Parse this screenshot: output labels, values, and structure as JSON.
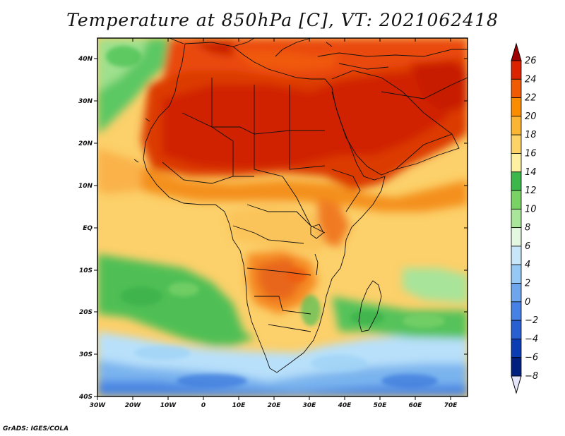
{
  "title": "Temperature at 850hPa [C], VT: 2021062418",
  "credit": "GrADS: IGES/COLA",
  "map": {
    "lon_labels": [
      "30W",
      "20W",
      "10W",
      "0",
      "10E",
      "20E",
      "30E",
      "40E",
      "50E",
      "60E",
      "70E"
    ],
    "lat_labels": [
      "40N",
      "30N",
      "20N",
      "10N",
      "EQ",
      "10S",
      "20S",
      "30S",
      "40S"
    ],
    "lon_range": [
      -30,
      75
    ],
    "lat_range": [
      -40,
      45
    ]
  },
  "colorbar": {
    "labels": [
      "26",
      "24",
      "22",
      "20",
      "18",
      "16",
      "14",
      "12",
      "10",
      "8",
      "6",
      "4",
      "2",
      "0",
      "−2",
      "−4",
      "−6",
      "−8"
    ],
    "colors": [
      "#a10000",
      "#dc2300",
      "#f05a00",
      "#fa8c00",
      "#fbb532",
      "#fcd366",
      "#fdf0a0",
      "#3cb84a",
      "#78d264",
      "#a9e69a",
      "#e4f7e0",
      "#c8e6fa",
      "#96c8f5",
      "#6ea6ed",
      "#4682e6",
      "#2860d2",
      "#0a3cb4",
      "#002080",
      "#00145a"
    ]
  }
}
